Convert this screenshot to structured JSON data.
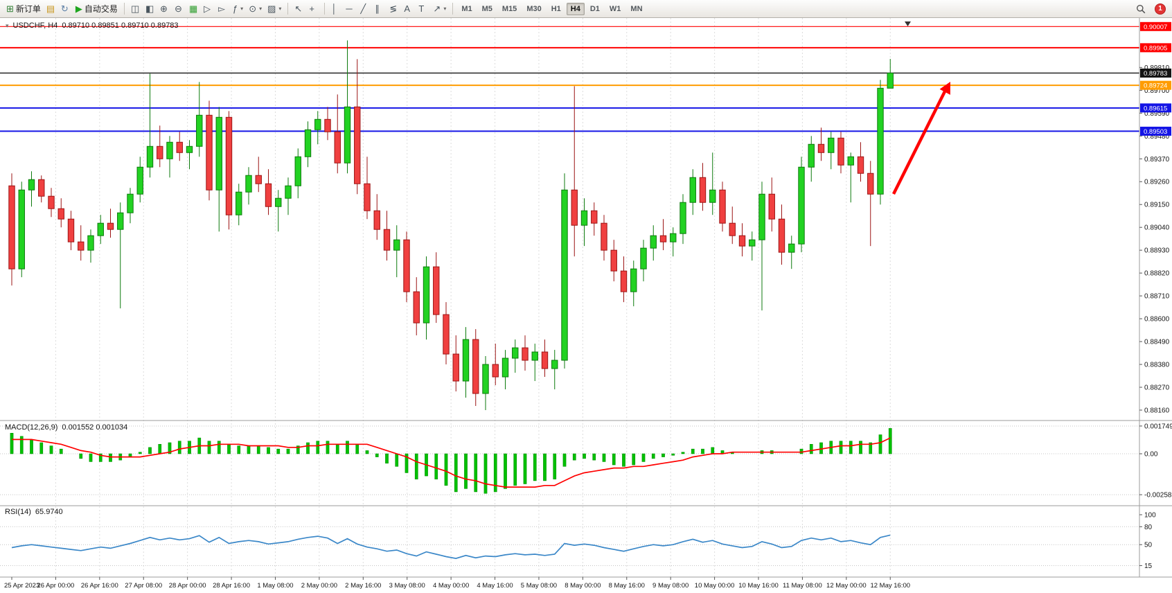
{
  "toolbar": {
    "new_order_label": "新订单",
    "auto_trading_label": "自动交易",
    "groups": [
      {
        "items": [
          {
            "name": "new-order-button",
            "glyph": "⊞",
            "glyph_color": "#2e7d32",
            "label": "新订单"
          },
          {
            "name": "deposit-button",
            "glyph": "▤",
            "glyph_color": "#c8961e"
          },
          {
            "name": "refresh-button",
            "glyph": "↻",
            "glyph_color": "#5b7fa6"
          },
          {
            "name": "auto-trading-button",
            "glyph": "▶",
            "glyph_color": "#1fa51f",
            "label": "自动交易"
          }
        ]
      },
      {
        "items": [
          {
            "name": "indicators-list-button",
            "glyph": "◫"
          },
          {
            "name": "objects-list-button",
            "glyph": "◧"
          },
          {
            "name": "zoom-in-button",
            "glyph": "⊕"
          },
          {
            "name": "zoom-out-button",
            "glyph": "⊖"
          },
          {
            "name": "tile-windows-button",
            "glyph": "▦",
            "glyph_color": "#2f9e2f"
          },
          {
            "name": "auto-scroll-button",
            "glyph": "▷"
          },
          {
            "name": "chart-shift-button",
            "glyph": "▻"
          },
          {
            "name": "add-indicator-button",
            "glyph": "ƒ",
            "dropdown": true
          },
          {
            "name": "periods-button",
            "glyph": "⊙",
            "dropdown": true
          },
          {
            "name": "templates-button",
            "glyph": "▨",
            "dropdown": true
          }
        ]
      },
      {
        "items": [
          {
            "name": "cursor-button",
            "glyph": "↖"
          },
          {
            "name": "crosshair-button",
            "glyph": "+"
          }
        ]
      },
      {
        "items": [
          {
            "name": "vertical-line-button",
            "glyph": "│"
          },
          {
            "name": "horizontal-line-button",
            "glyph": "─"
          },
          {
            "name": "trendline-button",
            "glyph": "╱"
          },
          {
            "name": "equidistant-channel-button",
            "glyph": "∥"
          },
          {
            "name": "fibonacci-button",
            "glyph": "≶"
          },
          {
            "name": "text-button",
            "glyph": "A"
          },
          {
            "name": "text-label-button",
            "glyph": "T"
          },
          {
            "name": "arrows-button",
            "glyph": "↗",
            "dropdown": true
          }
        ]
      },
      {
        "type": "timeframes"
      }
    ],
    "timeframes": [
      "M1",
      "M5",
      "M15",
      "M30",
      "H1",
      "H4",
      "D1",
      "W1",
      "MN"
    ],
    "active_timeframe": "H4",
    "notification_count": "1"
  },
  "chart_data": [
    {
      "type": "candlestick",
      "title": "USDCHF, H4",
      "ohlc_header": "0.89710 0.89851 0.89710 0.89783",
      "ylim": [
        0.8811,
        0.90048
      ],
      "grid": true,
      "bull_color": "#22d222",
      "bull_border": "#0c7a0c",
      "bear_color": "#f04040",
      "bear_border": "#9c1414",
      "y_ticks": [
        "0.89810",
        "0.89700",
        "0.89590",
        "0.89480",
        "0.89370",
        "0.89260",
        "0.89150",
        "0.89040",
        "0.88930",
        "0.88820",
        "0.88710",
        "0.88600",
        "0.88490",
        "0.88380",
        "0.88270",
        "0.88160"
      ],
      "levels": [
        {
          "price": 0.90007,
          "label": "0.90007",
          "color": "#ff0000",
          "width": 1.2,
          "role": "resistance-line"
        },
        {
          "price": 0.89905,
          "label": "0.89905",
          "color": "#ff0000",
          "width": 2,
          "role": "resistance-line"
        },
        {
          "price": 0.89783,
          "label": "0.89783",
          "color": "#141414",
          "width": 1.4,
          "role": "current-price-line"
        },
        {
          "price": 0.89724,
          "label": "0.89724",
          "color": "#ff9c00",
          "width": 2,
          "role": "support-line"
        },
        {
          "price": 0.89615,
          "label": "0.89615",
          "color": "#1414e6",
          "width": 2,
          "role": "support-line"
        },
        {
          "price": 0.89503,
          "label": "0.89503",
          "color": "#1414e6",
          "width": 2,
          "role": "support-line"
        }
      ],
      "annotation_arrow": {
        "color": "#ff0000",
        "direction": "up-right"
      },
      "x_labels": [
        "25 Apr 2023",
        "26 Apr 00:00",
        "26 Apr 16:00",
        "27 Apr 08:00",
        "28 Apr 00:00",
        "28 Apr 16:00",
        "1 May 08:00",
        "2 May 00:00",
        "2 May 16:00",
        "3 May 08:00",
        "4 May 00:00",
        "4 May 16:00",
        "5 May 08:00",
        "8 May 00:00",
        "8 May 16:00",
        "9 May 08:00",
        "10 May 00:00",
        "10 May 16:00",
        "11 May 08:00",
        "12 May 00:00",
        "12 May 16:00"
      ],
      "candles": [
        [
          0.8924,
          0.893,
          0.8876,
          0.8884
        ],
        [
          0.8884,
          0.8926,
          0.888,
          0.8922
        ],
        [
          0.8922,
          0.8931,
          0.8914,
          0.8927
        ],
        [
          0.8927,
          0.8929,
          0.8916,
          0.8919
        ],
        [
          0.8919,
          0.8923,
          0.8909,
          0.8913
        ],
        [
          0.8913,
          0.8918,
          0.8904,
          0.8908
        ],
        [
          0.8908,
          0.8912,
          0.8893,
          0.8897
        ],
        [
          0.8897,
          0.8905,
          0.8888,
          0.8893
        ],
        [
          0.8893,
          0.8903,
          0.8887,
          0.89
        ],
        [
          0.89,
          0.891,
          0.8896,
          0.8906
        ],
        [
          0.8906,
          0.8913,
          0.8899,
          0.8903
        ],
        [
          0.8903,
          0.8916,
          0.8865,
          0.8911
        ],
        [
          0.8911,
          0.8923,
          0.8906,
          0.892
        ],
        [
          0.892,
          0.8938,
          0.8916,
          0.8933
        ],
        [
          0.8933,
          0.8978,
          0.8928,
          0.8943
        ],
        [
          0.8943,
          0.8953,
          0.8933,
          0.8937
        ],
        [
          0.8937,
          0.8948,
          0.8928,
          0.8945
        ],
        [
          0.8945,
          0.895,
          0.8936,
          0.894
        ],
        [
          0.894,
          0.8946,
          0.8932,
          0.8943
        ],
        [
          0.8943,
          0.8974,
          0.8938,
          0.8958
        ],
        [
          0.8958,
          0.8965,
          0.8917,
          0.8922
        ],
        [
          0.8922,
          0.8962,
          0.8902,
          0.8957
        ],
        [
          0.8957,
          0.896,
          0.8903,
          0.891
        ],
        [
          0.891,
          0.8925,
          0.8905,
          0.8921
        ],
        [
          0.8921,
          0.8933,
          0.8915,
          0.8929
        ],
        [
          0.8929,
          0.8938,
          0.8921,
          0.8925
        ],
        [
          0.8925,
          0.8932,
          0.891,
          0.8914
        ],
        [
          0.8914,
          0.8922,
          0.8902,
          0.8918
        ],
        [
          0.8918,
          0.8928,
          0.891,
          0.8924
        ],
        [
          0.8924,
          0.8942,
          0.8918,
          0.8938
        ],
        [
          0.8938,
          0.8955,
          0.8933,
          0.8951
        ],
        [
          0.8951,
          0.896,
          0.8944,
          0.8956
        ],
        [
          0.8956,
          0.8962,
          0.8946,
          0.895
        ],
        [
          0.895,
          0.8968,
          0.893,
          0.8935
        ],
        [
          0.8935,
          0.8994,
          0.893,
          0.8962
        ],
        [
          0.8962,
          0.8985,
          0.892,
          0.8925
        ],
        [
          0.8925,
          0.8938,
          0.8908,
          0.8912
        ],
        [
          0.8912,
          0.892,
          0.8898,
          0.8903
        ],
        [
          0.8903,
          0.8912,
          0.8888,
          0.8893
        ],
        [
          0.8893,
          0.8905,
          0.888,
          0.8898
        ],
        [
          0.8898,
          0.8902,
          0.8868,
          0.8873
        ],
        [
          0.8873,
          0.888,
          0.8852,
          0.8858
        ],
        [
          0.8858,
          0.889,
          0.885,
          0.8885
        ],
        [
          0.8885,
          0.8892,
          0.8858,
          0.8862
        ],
        [
          0.8862,
          0.8868,
          0.8838,
          0.8843
        ],
        [
          0.8843,
          0.8852,
          0.8825,
          0.883
        ],
        [
          0.883,
          0.8856,
          0.8822,
          0.885
        ],
        [
          0.885,
          0.8855,
          0.8818,
          0.8824
        ],
        [
          0.8824,
          0.8842,
          0.8816,
          0.8838
        ],
        [
          0.8838,
          0.8848,
          0.8828,
          0.8832
        ],
        [
          0.8832,
          0.8845,
          0.8826,
          0.8841
        ],
        [
          0.8841,
          0.885,
          0.8834,
          0.8846
        ],
        [
          0.8846,
          0.8852,
          0.8835,
          0.884
        ],
        [
          0.884,
          0.8848,
          0.883,
          0.8844
        ],
        [
          0.8844,
          0.885,
          0.8832,
          0.8836
        ],
        [
          0.8836,
          0.8845,
          0.8826,
          0.884
        ],
        [
          0.884,
          0.893,
          0.8836,
          0.8922
        ],
        [
          0.8922,
          0.8972,
          0.889,
          0.8905
        ],
        [
          0.8905,
          0.8918,
          0.8895,
          0.8912
        ],
        [
          0.8912,
          0.8916,
          0.89,
          0.8906
        ],
        [
          0.8906,
          0.891,
          0.8888,
          0.8893
        ],
        [
          0.8893,
          0.8898,
          0.8878,
          0.8883
        ],
        [
          0.8883,
          0.889,
          0.8868,
          0.8873
        ],
        [
          0.8873,
          0.8888,
          0.8866,
          0.8884
        ],
        [
          0.8884,
          0.8898,
          0.8878,
          0.8894
        ],
        [
          0.8894,
          0.8905,
          0.8888,
          0.89
        ],
        [
          0.89,
          0.8908,
          0.8893,
          0.8897
        ],
        [
          0.8897,
          0.8904,
          0.889,
          0.8901
        ],
        [
          0.8901,
          0.892,
          0.8896,
          0.8916
        ],
        [
          0.8916,
          0.8932,
          0.891,
          0.8928
        ],
        [
          0.8928,
          0.8935,
          0.8912,
          0.8916
        ],
        [
          0.8916,
          0.894,
          0.891,
          0.8922
        ],
        [
          0.8922,
          0.8926,
          0.8902,
          0.8906
        ],
        [
          0.8906,
          0.8914,
          0.8896,
          0.89
        ],
        [
          0.89,
          0.8906,
          0.889,
          0.8895
        ],
        [
          0.8895,
          0.8902,
          0.8888,
          0.8898
        ],
        [
          0.8898,
          0.8926,
          0.8864,
          0.892
        ],
        [
          0.892,
          0.8928,
          0.8902,
          0.8908
        ],
        [
          0.8908,
          0.8915,
          0.8886,
          0.8892
        ],
        [
          0.8892,
          0.89,
          0.8884,
          0.8896
        ],
        [
          0.8896,
          0.8938,
          0.8892,
          0.8933
        ],
        [
          0.8933,
          0.8948,
          0.8926,
          0.8944
        ],
        [
          0.8944,
          0.8952,
          0.8936,
          0.894
        ],
        [
          0.894,
          0.895,
          0.8932,
          0.8947
        ],
        [
          0.8947,
          0.895,
          0.893,
          0.8934
        ],
        [
          0.8934,
          0.894,
          0.8916,
          0.8938
        ],
        [
          0.8938,
          0.8945,
          0.8926,
          0.893
        ],
        [
          0.893,
          0.8936,
          0.8895,
          0.892
        ],
        [
          0.892,
          0.8975,
          0.8915,
          0.8971
        ],
        [
          0.8971,
          0.89851,
          0.8971,
          0.89783
        ]
      ]
    },
    {
      "type": "bar+line",
      "title": "MACD(12,26,9)",
      "values_label": "0.001552 0.001034",
      "y_ticks": [
        "0.001749",
        "0.00",
        "-0.002581"
      ],
      "histogram_color": "#00c000",
      "signal_color": "#ff0000",
      "histogram": [
        0.0013,
        0.0011,
        0.0009,
        0.0007,
        0.0005,
        0.0003,
        0.0,
        -0.0003,
        -0.0005,
        -0.0005,
        -0.0005,
        -0.0004,
        -0.0002,
        0.0001,
        0.0004,
        0.0006,
        0.0007,
        0.0008,
        0.0008,
        0.001,
        0.0008,
        0.0008,
        0.0006,
        0.0005,
        0.0005,
        0.0005,
        0.0004,
        0.0003,
        0.0003,
        0.0005,
        0.0007,
        0.0008,
        0.0008,
        0.0006,
        0.0008,
        0.0006,
        0.0002,
        -0.0002,
        -0.0006,
        -0.0008,
        -0.0012,
        -0.0016,
        -0.0014,
        -0.0016,
        -0.002,
        -0.0024,
        -0.0022,
        -0.0024,
        -0.0025,
        -0.0024,
        -0.0022,
        -0.002,
        -0.0019,
        -0.0017,
        -0.0017,
        -0.0016,
        -0.0008,
        -0.0004,
        -0.0003,
        -0.0004,
        -0.0005,
        -0.0007,
        -0.0008,
        -0.0007,
        -0.0005,
        -0.0003,
        -0.0002,
        -0.0001,
        0.0001,
        0.0003,
        0.0003,
        0.0004,
        0.0002,
        0.0001,
        0.0,
        0.0,
        0.0002,
        0.0002,
        0.0,
        0.0,
        0.0003,
        0.0006,
        0.0007,
        0.0008,
        0.0008,
        0.0008,
        0.0008,
        0.0007,
        0.0012,
        0.0016
      ],
      "signal": [
        0.0009,
        0.0009,
        0.0009,
        0.0008,
        0.0007,
        0.0006,
        0.0004,
        0.0002,
        0.0001,
        -0.0001,
        -0.0002,
        -0.0002,
        -0.0002,
        -0.0002,
        -0.0001,
        0.0,
        0.0001,
        0.0003,
        0.0004,
        0.0005,
        0.0005,
        0.0006,
        0.0006,
        0.0006,
        0.0005,
        0.0005,
        0.0005,
        0.0005,
        0.0004,
        0.0004,
        0.0005,
        0.0005,
        0.0006,
        0.0006,
        0.0006,
        0.0006,
        0.0006,
        0.0004,
        0.0002,
        0.0,
        -0.0002,
        -0.0005,
        -0.0007,
        -0.0009,
        -0.0011,
        -0.0014,
        -0.0016,
        -0.0017,
        -0.0019,
        -0.002,
        -0.0021,
        -0.0021,
        -0.0021,
        -0.0021,
        -0.002,
        -0.002,
        -0.0017,
        -0.0014,
        -0.0012,
        -0.0011,
        -0.001,
        -0.0009,
        -0.0009,
        -0.0008,
        -0.0008,
        -0.0007,
        -0.0006,
        -0.0005,
        -0.0004,
        -0.0002,
        -0.0001,
        0.0,
        0.0,
        0.0001,
        0.0001,
        0.0001,
        0.0001,
        0.0001,
        0.0001,
        0.0001,
        0.0001,
        0.0002,
        0.0003,
        0.0004,
        0.0005,
        0.0005,
        0.0006,
        0.0006,
        0.0007,
        0.001
      ]
    },
    {
      "type": "line",
      "title": "RSI(14)",
      "values_label": "65.9740",
      "y_ticks": [
        "100",
        "80",
        "50",
        "15"
      ],
      "levels": [
        80,
        50,
        15
      ],
      "line_color": "#3a87c8",
      "values": [
        45,
        48,
        50,
        48,
        46,
        44,
        42,
        40,
        43,
        46,
        44,
        48,
        52,
        57,
        62,
        58,
        61,
        58,
        60,
        65,
        54,
        62,
        52,
        55,
        57,
        55,
        51,
        53,
        55,
        59,
        62,
        64,
        61,
        52,
        60,
        51,
        46,
        43,
        39,
        41,
        35,
        31,
        38,
        34,
        30,
        27,
        32,
        28,
        31,
        30,
        33,
        35,
        33,
        34,
        32,
        34,
        52,
        49,
        51,
        49,
        45,
        42,
        39,
        43,
        47,
        50,
        48,
        50,
        55,
        59,
        54,
        57,
        51,
        48,
        45,
        47,
        55,
        51,
        45,
        47,
        57,
        61,
        58,
        61,
        55,
        57,
        53,
        50,
        62,
        66
      ]
    }
  ]
}
